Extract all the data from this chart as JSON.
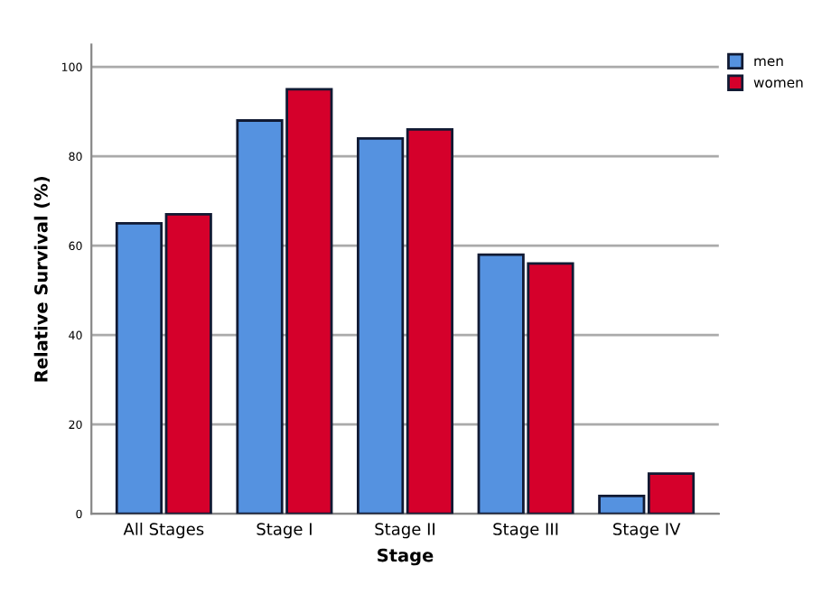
{
  "chart_data": {
    "type": "bar",
    "xlabel": "Stage",
    "ylabel": "Relative Survival (%)",
    "categories": [
      "All Stages",
      "Stage I",
      "Stage II",
      "Stage III",
      "Stage IV"
    ],
    "series": [
      {
        "name": "men",
        "color": "#5592e0",
        "values": [
          65,
          88,
          84,
          58,
          4
        ]
      },
      {
        "name": "women",
        "color": "#d5002b",
        "values": [
          67,
          95,
          86,
          56,
          9
        ]
      }
    ],
    "ylim": [
      0,
      105
    ],
    "yticks": [
      0,
      20,
      40,
      60,
      80,
      100
    ],
    "grid": "y",
    "legend": "top right"
  }
}
